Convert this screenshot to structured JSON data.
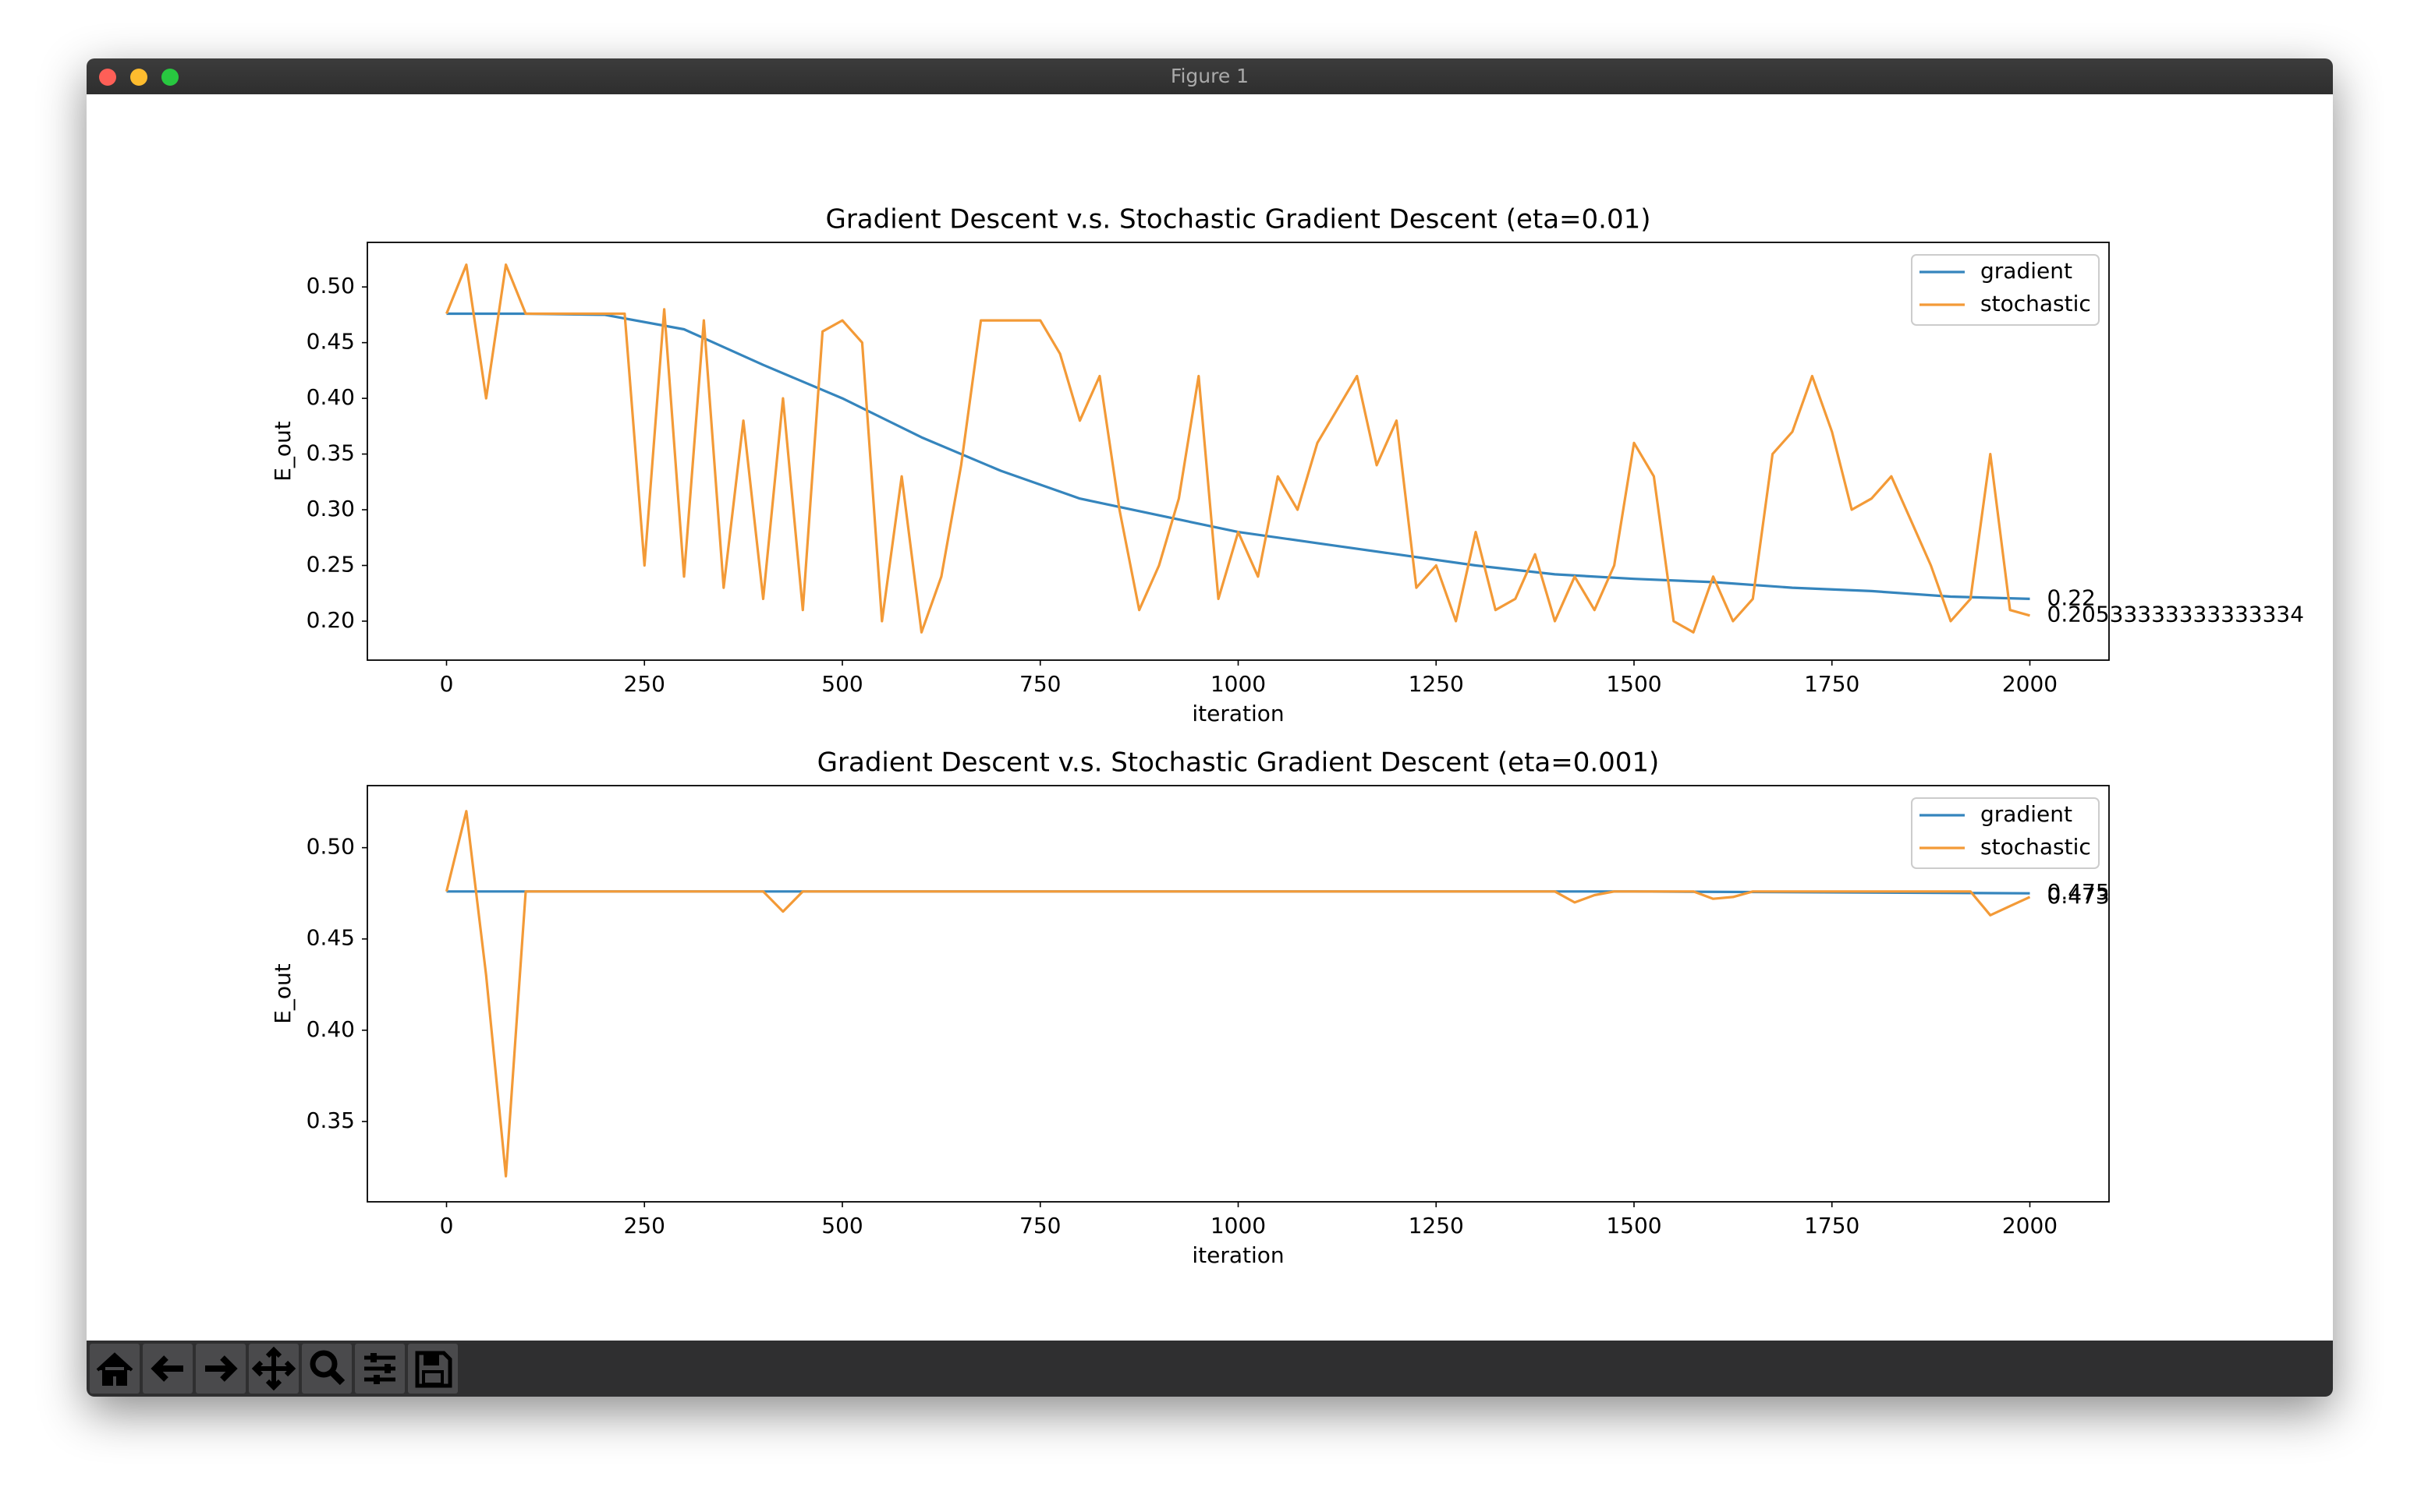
{
  "window": {
    "title": "Figure 1"
  },
  "chart_data": [
    {
      "type": "line",
      "title": "Gradient Descent v.s. Stochastic Gradient Descent (eta=0.01)",
      "xlabel": "iteration",
      "ylabel": "E_out",
      "xlim": [
        -100,
        2100
      ],
      "ylim": [
        0.165,
        0.54
      ],
      "xticks": [
        0,
        250,
        500,
        750,
        1000,
        1250,
        1500,
        1750,
        2000
      ],
      "yticks": [
        {
          "value": 0.2,
          "label": "0.20"
        },
        0.25,
        {
          "value": 0.3,
          "label": "0.30"
        },
        0.35,
        {
          "value": 0.4,
          "label": "0.40"
        },
        0.45,
        {
          "value": 0.5,
          "label": "0.50"
        }
      ],
      "legend": "upper right",
      "series": [
        {
          "name": "gradient",
          "color": "#3585bd",
          "x": [
            0,
            100,
            200,
            300,
            400,
            500,
            600,
            700,
            800,
            900,
            1000,
            1100,
            1200,
            1300,
            1400,
            1500,
            1600,
            1700,
            1800,
            1900,
            2000
          ],
          "values": [
            0.476,
            0.476,
            0.475,
            0.462,
            0.43,
            0.4,
            0.365,
            0.335,
            0.31,
            0.295,
            0.28,
            0.27,
            0.26,
            0.25,
            0.242,
            0.238,
            0.235,
            0.23,
            0.227,
            0.222,
            0.22
          ]
        },
        {
          "name": "stochastic",
          "color": "#f39a37",
          "x": [
            0,
            25,
            50,
            75,
            100,
            125,
            150,
            175,
            200,
            225,
            250,
            275,
            300,
            325,
            350,
            375,
            400,
            425,
            450,
            475,
            500,
            525,
            550,
            575,
            600,
            625,
            650,
            675,
            700,
            725,
            750,
            775,
            800,
            825,
            850,
            875,
            900,
            925,
            950,
            975,
            1000,
            1025,
            1050,
            1075,
            1100,
            1125,
            1150,
            1175,
            1200,
            1225,
            1250,
            1275,
            1300,
            1325,
            1350,
            1375,
            1400,
            1425,
            1450,
            1475,
            1500,
            1525,
            1550,
            1575,
            1600,
            1625,
            1650,
            1675,
            1700,
            1725,
            1750,
            1775,
            1800,
            1825,
            1850,
            1875,
            1900,
            1925,
            1950,
            1975,
            2000
          ],
          "values": [
            0.476,
            0.52,
            0.4,
            0.52,
            0.476,
            0.476,
            0.476,
            0.476,
            0.476,
            0.476,
            0.25,
            0.48,
            0.24,
            0.47,
            0.23,
            0.38,
            0.22,
            0.4,
            0.21,
            0.46,
            0.47,
            0.45,
            0.2,
            0.33,
            0.19,
            0.24,
            0.34,
            0.47,
            0.47,
            0.47,
            0.47,
            0.44,
            0.38,
            0.42,
            0.3,
            0.21,
            0.25,
            0.31,
            0.42,
            0.22,
            0.28,
            0.24,
            0.33,
            0.3,
            0.36,
            0.39,
            0.42,
            0.34,
            0.38,
            0.23,
            0.25,
            0.2,
            0.28,
            0.21,
            0.22,
            0.26,
            0.2,
            0.24,
            0.21,
            0.25,
            0.36,
            0.33,
            0.2,
            0.19,
            0.24,
            0.2,
            0.22,
            0.35,
            0.37,
            0.42,
            0.37,
            0.3,
            0.31,
            0.33,
            0.29,
            0.25,
            0.2,
            0.22,
            0.35,
            0.21,
            0.205
          ]
        }
      ],
      "annotations": [
        {
          "text": "0.22",
          "x": 2000,
          "y": 0.22
        },
        {
          "text": "0.20533333333333334",
          "x": 2000,
          "y": 0.20533333333333334
        }
      ]
    },
    {
      "type": "line",
      "title": "Gradient Descent v.s. Stochastic Gradient Descent (eta=0.001)",
      "xlabel": "iteration",
      "ylabel": "E_out",
      "xlim": [
        -100,
        2100
      ],
      "ylim": [
        0.306,
        0.534
      ],
      "xticks": [
        0,
        250,
        500,
        750,
        1000,
        1250,
        1500,
        1750,
        2000
      ],
      "yticks": [
        0.35,
        {
          "value": 0.4,
          "label": "0.40"
        },
        0.45,
        {
          "value": 0.5,
          "label": "0.50"
        }
      ],
      "legend": "upper right",
      "series": [
        {
          "name": "gradient",
          "color": "#3585bd",
          "x": [
            0,
            500,
            1000,
            1500,
            2000
          ],
          "values": [
            0.476,
            0.476,
            0.476,
            0.476,
            0.475
          ]
        },
        {
          "name": "stochastic",
          "color": "#f39a37",
          "x": [
            0,
            25,
            50,
            75,
            100,
            125,
            150,
            175,
            200,
            225,
            250,
            275,
            300,
            325,
            350,
            375,
            400,
            425,
            450,
            475,
            500,
            525,
            550,
            575,
            600,
            625,
            650,
            675,
            700,
            725,
            750,
            775,
            800,
            825,
            850,
            875,
            900,
            925,
            950,
            975,
            1000,
            1025,
            1050,
            1075,
            1100,
            1125,
            1150,
            1175,
            1200,
            1225,
            1250,
            1275,
            1300,
            1325,
            1350,
            1375,
            1400,
            1425,
            1450,
            1475,
            1500,
            1525,
            1550,
            1575,
            1600,
            1625,
            1650,
            1675,
            1700,
            1725,
            1750,
            1775,
            1800,
            1825,
            1850,
            1875,
            1900,
            1925,
            1950,
            1975,
            2000
          ],
          "values": [
            0.476,
            0.52,
            0.43,
            0.32,
            0.476,
            0.476,
            0.476,
            0.476,
            0.476,
            0.476,
            0.476,
            0.476,
            0.476,
            0.476,
            0.476,
            0.476,
            0.476,
            0.465,
            0.476,
            0.476,
            0.476,
            0.476,
            0.476,
            0.476,
            0.476,
            0.476,
            0.476,
            0.476,
            0.476,
            0.476,
            0.476,
            0.476,
            0.476,
            0.476,
            0.476,
            0.476,
            0.476,
            0.476,
            0.476,
            0.476,
            0.476,
            0.476,
            0.476,
            0.476,
            0.476,
            0.476,
            0.476,
            0.476,
            0.476,
            0.476,
            0.476,
            0.476,
            0.476,
            0.476,
            0.476,
            0.476,
            0.476,
            0.47,
            0.474,
            0.476,
            0.476,
            0.476,
            0.476,
            0.476,
            0.472,
            0.473,
            0.476,
            0.476,
            0.476,
            0.476,
            0.476,
            0.476,
            0.476,
            0.476,
            0.476,
            0.476,
            0.476,
            0.476,
            0.463,
            0.468,
            0.473
          ]
        }
      ],
      "annotations": [
        {
          "text": "0.475",
          "x": 2000,
          "y": 0.475
        },
        {
          "text": "0.473",
          "x": 2000,
          "y": 0.473
        }
      ]
    }
  ]
}
